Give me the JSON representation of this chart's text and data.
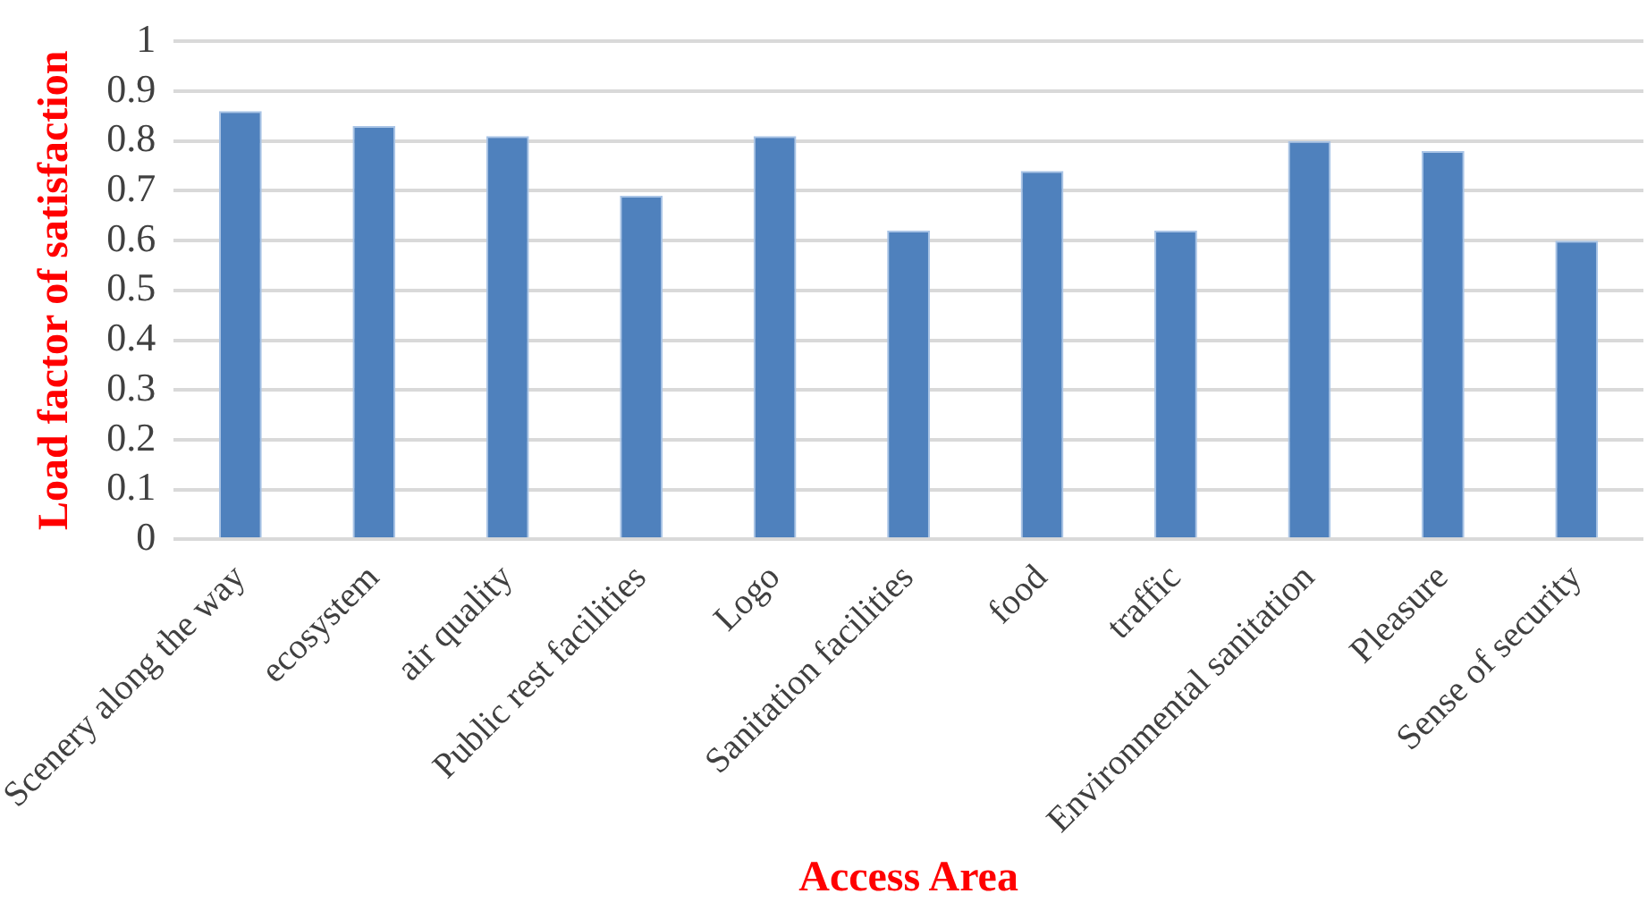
{
  "chart_data": {
    "type": "bar",
    "xlabel": "Access Area",
    "ylabel": "Load factor of satisfaction",
    "categories": [
      "Scenery along the way",
      "ecosystem",
      "air quality",
      "Public rest facilities",
      "Logo",
      "Sanitation facilities",
      "food",
      "traffic",
      "Environmental sanitation",
      "Pleasure",
      "Sense of security"
    ],
    "values": [
      0.86,
      0.83,
      0.81,
      0.69,
      0.81,
      0.62,
      0.74,
      0.62,
      0.8,
      0.78,
      0.6
    ],
    "color": "#4f81bd",
    "ylim": [
      0,
      1
    ],
    "yticks": [
      0,
      0.1,
      0.2,
      0.3,
      0.4,
      0.5,
      0.6,
      0.7,
      0.8,
      0.9,
      1
    ],
    "grid": "y",
    "legend": false
  }
}
